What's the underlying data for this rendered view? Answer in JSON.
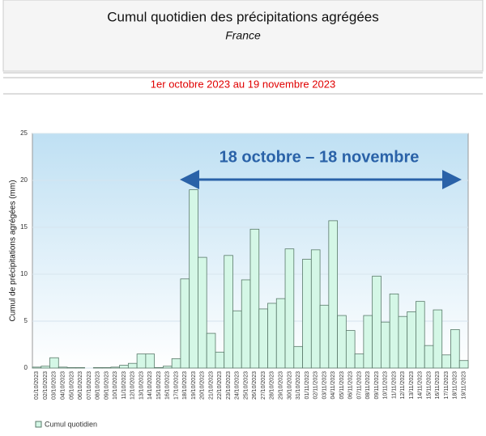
{
  "chart_data": {
    "type": "bar",
    "title": "Cumul quotidien des précipitations agrégées",
    "subtitle": "France",
    "period": "1er octobre 2023 au 19 novembre 2023",
    "annotation": "18 octobre – 18 novembre",
    "y_label": "Cumul de précipitations agrégées (mm)",
    "categories": [
      "01/10/2023",
      "02/10/2023",
      "03/10/2023",
      "04/10/2023",
      "05/10/2023",
      "06/10/2023",
      "07/10/2023",
      "08/10/2023",
      "09/10/2023",
      "10/10/2023",
      "11/10/2023",
      "12/10/2023",
      "13/10/2023",
      "14/10/2023",
      "15/10/2023",
      "16/10/2023",
      "17/10/2023",
      "18/10/2023",
      "19/10/2023",
      "20/10/2023",
      "21/10/2023",
      "22/10/2023",
      "23/10/2023",
      "24/10/2023",
      "25/10/2023",
      "26/10/2023",
      "27/10/2023",
      "28/10/2023",
      "29/10/2023",
      "30/10/2023",
      "31/10/2023",
      "01/11/2023",
      "02/11/2023",
      "03/11/2023",
      "04/11/2023",
      "05/11/2023",
      "06/11/2023",
      "07/11/2023",
      "08/11/2023",
      "09/11/2023",
      "10/11/2023",
      "11/11/2023",
      "12/11/2023",
      "13/11/2023",
      "14/11/2023",
      "15/11/2023",
      "16/11/2023",
      "17/11/2023",
      "18/11/2023",
      "19/11/2023"
    ],
    "series": [
      {
        "name": "Cumul quotidien",
        "color": "#d4f7e6",
        "values": [
          0.1,
          0.2,
          1.1,
          0.1,
          0.05,
          0.05,
          0,
          0.05,
          0.05,
          0.1,
          0.3,
          0.5,
          1.5,
          1.5,
          0.05,
          0.2,
          1.0,
          9.5,
          19.0,
          11.8,
          3.7,
          1.7,
          12.0,
          6.1,
          9.4,
          14.8,
          6.3,
          6.9,
          7.4,
          12.7,
          2.3,
          11.6,
          12.6,
          6.7,
          15.7,
          5.6,
          4.0,
          1.5,
          5.6,
          9.8,
          4.9,
          7.9,
          5.5,
          6.0,
          7.1,
          2.4,
          6.2,
          1.4,
          4.1,
          0.8
        ]
      }
    ],
    "ylim": [
      0,
      25
    ],
    "yticks": [
      0,
      5,
      10,
      15,
      20,
      25
    ],
    "grid": true
  }
}
